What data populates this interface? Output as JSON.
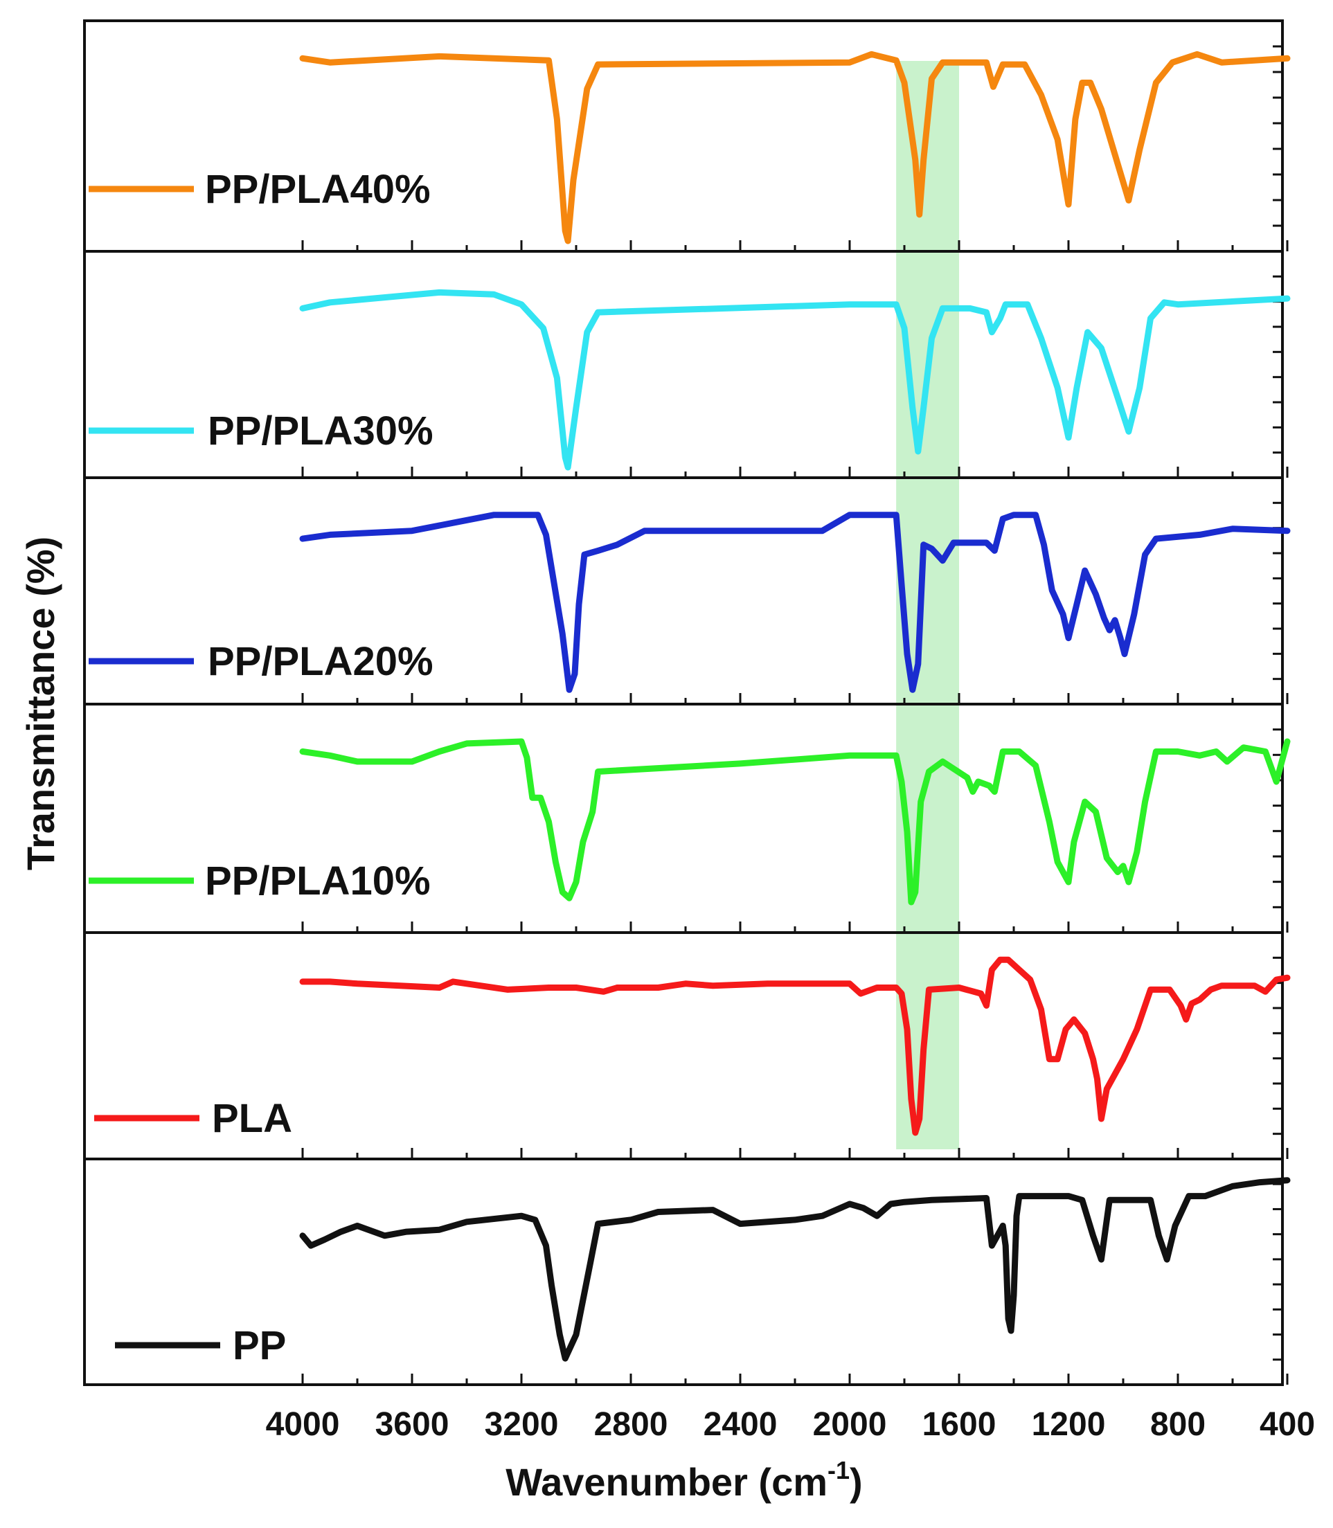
{
  "chart_data": {
    "type": "line",
    "title": "",
    "xlabel": "Wavenumber (cm",
    "xlabel_sup": "-1",
    "xlabel_close": ")",
    "ylabel": "Transmittance  (%)",
    "xlim": [
      4000,
      400
    ],
    "x_ticks": [
      "4000",
      "3600",
      "3200",
      "2800",
      "2400",
      "2000",
      "1600",
      "1200",
      "800",
      "400"
    ],
    "highlight_band": {
      "from": 1830,
      "to": 1600,
      "color": "#c9f2cc"
    },
    "series": [
      {
        "name": "PP/PLA40%",
        "color": "#f5870f",
        "points": [
          [
            4000,
            0.1
          ],
          [
            3900,
            0.12
          ],
          [
            3500,
            0.09
          ],
          [
            3100,
            0.11
          ],
          [
            3070,
            0.4
          ],
          [
            3040,
            0.95
          ],
          [
            3030,
            1.0
          ],
          [
            3010,
            0.7
          ],
          [
            2960,
            0.25
          ],
          [
            2920,
            0.13
          ],
          [
            2000,
            0.12
          ],
          [
            1920,
            0.08
          ],
          [
            1830,
            0.11
          ],
          [
            1800,
            0.22
          ],
          [
            1760,
            0.6
          ],
          [
            1745,
            0.87
          ],
          [
            1730,
            0.6
          ],
          [
            1700,
            0.2
          ],
          [
            1660,
            0.12
          ],
          [
            1560,
            0.12
          ],
          [
            1500,
            0.12
          ],
          [
            1475,
            0.24
          ],
          [
            1440,
            0.13
          ],
          [
            1360,
            0.13
          ],
          [
            1300,
            0.28
          ],
          [
            1240,
            0.5
          ],
          [
            1200,
            0.82
          ],
          [
            1175,
            0.4
          ],
          [
            1150,
            0.22
          ],
          [
            1120,
            0.22
          ],
          [
            1080,
            0.35
          ],
          [
            1020,
            0.62
          ],
          [
            980,
            0.8
          ],
          [
            940,
            0.55
          ],
          [
            880,
            0.22
          ],
          [
            820,
            0.12
          ],
          [
            730,
            0.08
          ],
          [
            640,
            0.12
          ],
          [
            400,
            0.1
          ]
        ]
      },
      {
        "name": "PP/PLA30%",
        "color": "#33e4f2",
        "points": [
          [
            4000,
            0.2
          ],
          [
            3900,
            0.17
          ],
          [
            3500,
            0.12
          ],
          [
            3300,
            0.13
          ],
          [
            3200,
            0.18
          ],
          [
            3120,
            0.3
          ],
          [
            3070,
            0.55
          ],
          [
            3040,
            0.95
          ],
          [
            3030,
            1.0
          ],
          [
            3000,
            0.7
          ],
          [
            2960,
            0.32
          ],
          [
            2920,
            0.22
          ],
          [
            2000,
            0.18
          ],
          [
            1830,
            0.18
          ],
          [
            1800,
            0.3
          ],
          [
            1770,
            0.7
          ],
          [
            1750,
            0.92
          ],
          [
            1730,
            0.7
          ],
          [
            1700,
            0.35
          ],
          [
            1660,
            0.2
          ],
          [
            1560,
            0.2
          ],
          [
            1500,
            0.22
          ],
          [
            1480,
            0.32
          ],
          [
            1450,
            0.25
          ],
          [
            1430,
            0.18
          ],
          [
            1350,
            0.18
          ],
          [
            1300,
            0.35
          ],
          [
            1240,
            0.6
          ],
          [
            1200,
            0.85
          ],
          [
            1170,
            0.6
          ],
          [
            1130,
            0.32
          ],
          [
            1080,
            0.4
          ],
          [
            1020,
            0.65
          ],
          [
            980,
            0.82
          ],
          [
            940,
            0.6
          ],
          [
            900,
            0.25
          ],
          [
            850,
            0.17
          ],
          [
            800,
            0.18
          ],
          [
            400,
            0.15
          ]
        ]
      },
      {
        "name": "PP/PLA20%",
        "color": "#1a2ccf",
        "points": [
          [
            4000,
            0.22
          ],
          [
            3900,
            0.2
          ],
          [
            3600,
            0.18
          ],
          [
            3450,
            0.14
          ],
          [
            3300,
            0.1
          ],
          [
            3140,
            0.1
          ],
          [
            3110,
            0.2
          ],
          [
            3080,
            0.45
          ],
          [
            3050,
            0.7
          ],
          [
            3025,
            0.98
          ],
          [
            3005,
            0.9
          ],
          [
            2990,
            0.55
          ],
          [
            2970,
            0.3
          ],
          [
            2920,
            0.28
          ],
          [
            2850,
            0.25
          ],
          [
            2750,
            0.18
          ],
          [
            2100,
            0.18
          ],
          [
            2000,
            0.1
          ],
          [
            1830,
            0.1
          ],
          [
            1810,
            0.45
          ],
          [
            1790,
            0.8
          ],
          [
            1770,
            0.98
          ],
          [
            1750,
            0.85
          ],
          [
            1730,
            0.25
          ],
          [
            1700,
            0.27
          ],
          [
            1660,
            0.33
          ],
          [
            1620,
            0.24
          ],
          [
            1560,
            0.24
          ],
          [
            1500,
            0.24
          ],
          [
            1470,
            0.28
          ],
          [
            1440,
            0.12
          ],
          [
            1400,
            0.1
          ],
          [
            1320,
            0.1
          ],
          [
            1290,
            0.25
          ],
          [
            1260,
            0.48
          ],
          [
            1220,
            0.6
          ],
          [
            1200,
            0.72
          ],
          [
            1170,
            0.55
          ],
          [
            1140,
            0.38
          ],
          [
            1100,
            0.5
          ],
          [
            1070,
            0.62
          ],
          [
            1050,
            0.68
          ],
          [
            1030,
            0.63
          ],
          [
            1010,
            0.72
          ],
          [
            995,
            0.8
          ],
          [
            960,
            0.6
          ],
          [
            920,
            0.3
          ],
          [
            880,
            0.22
          ],
          [
            720,
            0.2
          ],
          [
            600,
            0.17
          ],
          [
            400,
            0.18
          ]
        ]
      },
      {
        "name": "PP/PLA10%",
        "color": "#2cf028",
        "points": [
          [
            4000,
            0.15
          ],
          [
            3900,
            0.17
          ],
          [
            3800,
            0.2
          ],
          [
            3600,
            0.2
          ],
          [
            3500,
            0.15
          ],
          [
            3400,
            0.11
          ],
          [
            3200,
            0.1
          ],
          [
            3180,
            0.18
          ],
          [
            3160,
            0.38
          ],
          [
            3130,
            0.38
          ],
          [
            3100,
            0.5
          ],
          [
            3075,
            0.7
          ],
          [
            3050,
            0.85
          ],
          [
            3025,
            0.88
          ],
          [
            3000,
            0.8
          ],
          [
            2975,
            0.6
          ],
          [
            2940,
            0.45
          ],
          [
            2920,
            0.25
          ],
          [
            2400,
            0.21
          ],
          [
            2000,
            0.17
          ],
          [
            1830,
            0.17
          ],
          [
            1810,
            0.3
          ],
          [
            1790,
            0.55
          ],
          [
            1775,
            0.9
          ],
          [
            1760,
            0.85
          ],
          [
            1740,
            0.4
          ],
          [
            1710,
            0.25
          ],
          [
            1660,
            0.2
          ],
          [
            1570,
            0.28
          ],
          [
            1550,
            0.35
          ],
          [
            1530,
            0.3
          ],
          [
            1490,
            0.32
          ],
          [
            1470,
            0.35
          ],
          [
            1440,
            0.15
          ],
          [
            1380,
            0.15
          ],
          [
            1320,
            0.22
          ],
          [
            1270,
            0.5
          ],
          [
            1240,
            0.7
          ],
          [
            1200,
            0.8
          ],
          [
            1180,
            0.6
          ],
          [
            1140,
            0.4
          ],
          [
            1100,
            0.45
          ],
          [
            1060,
            0.68
          ],
          [
            1020,
            0.75
          ],
          [
            1000,
            0.72
          ],
          [
            980,
            0.8
          ],
          [
            950,
            0.65
          ],
          [
            920,
            0.4
          ],
          [
            880,
            0.15
          ],
          [
            800,
            0.15
          ],
          [
            720,
            0.17
          ],
          [
            660,
            0.15
          ],
          [
            620,
            0.2
          ],
          [
            560,
            0.13
          ],
          [
            480,
            0.15
          ],
          [
            440,
            0.3
          ],
          [
            420,
            0.2
          ],
          [
            400,
            0.1
          ]
        ]
      },
      {
        "name": "PLA",
        "color": "#f51a1a",
        "points": [
          [
            4000,
            0.16
          ],
          [
            3900,
            0.16
          ],
          [
            3800,
            0.17
          ],
          [
            3500,
            0.19
          ],
          [
            3450,
            0.16
          ],
          [
            3350,
            0.18
          ],
          [
            3250,
            0.2
          ],
          [
            3100,
            0.19
          ],
          [
            3000,
            0.19
          ],
          [
            2900,
            0.21
          ],
          [
            2850,
            0.19
          ],
          [
            2700,
            0.19
          ],
          [
            2600,
            0.17
          ],
          [
            2500,
            0.18
          ],
          [
            2300,
            0.17
          ],
          [
            2000,
            0.17
          ],
          [
            1960,
            0.22
          ],
          [
            1900,
            0.19
          ],
          [
            1830,
            0.19
          ],
          [
            1810,
            0.22
          ],
          [
            1790,
            0.4
          ],
          [
            1775,
            0.75
          ],
          [
            1760,
            0.92
          ],
          [
            1745,
            0.85
          ],
          [
            1730,
            0.5
          ],
          [
            1710,
            0.2
          ],
          [
            1600,
            0.19
          ],
          [
            1520,
            0.22
          ],
          [
            1500,
            0.28
          ],
          [
            1480,
            0.1
          ],
          [
            1450,
            0.05
          ],
          [
            1420,
            0.05
          ],
          [
            1380,
            0.1
          ],
          [
            1340,
            0.15
          ],
          [
            1300,
            0.3
          ],
          [
            1270,
            0.55
          ],
          [
            1240,
            0.55
          ],
          [
            1210,
            0.4
          ],
          [
            1180,
            0.35
          ],
          [
            1140,
            0.42
          ],
          [
            1110,
            0.55
          ],
          [
            1095,
            0.65
          ],
          [
            1080,
            0.85
          ],
          [
            1060,
            0.7
          ],
          [
            1000,
            0.55
          ],
          [
            950,
            0.4
          ],
          [
            900,
            0.2
          ],
          [
            830,
            0.2
          ],
          [
            790,
            0.28
          ],
          [
            770,
            0.35
          ],
          [
            750,
            0.27
          ],
          [
            720,
            0.25
          ],
          [
            680,
            0.2
          ],
          [
            640,
            0.18
          ],
          [
            520,
            0.18
          ],
          [
            480,
            0.21
          ],
          [
            440,
            0.15
          ],
          [
            400,
            0.14
          ]
        ]
      },
      {
        "name": "PP",
        "color": "#111111",
        "points": [
          [
            4000,
            0.3
          ],
          [
            3970,
            0.35
          ],
          [
            3920,
            0.32
          ],
          [
            3860,
            0.28
          ],
          [
            3800,
            0.25
          ],
          [
            3700,
            0.3
          ],
          [
            3620,
            0.28
          ],
          [
            3500,
            0.27
          ],
          [
            3400,
            0.23
          ],
          [
            3200,
            0.2
          ],
          [
            3150,
            0.22
          ],
          [
            3110,
            0.35
          ],
          [
            3090,
            0.55
          ],
          [
            3060,
            0.8
          ],
          [
            3040,
            0.92
          ],
          [
            3000,
            0.8
          ],
          [
            2950,
            0.45
          ],
          [
            2920,
            0.24
          ],
          [
            2800,
            0.22
          ],
          [
            2700,
            0.18
          ],
          [
            2500,
            0.17
          ],
          [
            2400,
            0.24
          ],
          [
            2200,
            0.22
          ],
          [
            2100,
            0.2
          ],
          [
            2000,
            0.14
          ],
          [
            1950,
            0.16
          ],
          [
            1900,
            0.2
          ],
          [
            1850,
            0.14
          ],
          [
            1800,
            0.13
          ],
          [
            1700,
            0.12
          ],
          [
            1500,
            0.11
          ],
          [
            1480,
            0.35
          ],
          [
            1460,
            0.3
          ],
          [
            1440,
            0.25
          ],
          [
            1430,
            0.35
          ],
          [
            1420,
            0.72
          ],
          [
            1410,
            0.78
          ],
          [
            1400,
            0.6
          ],
          [
            1390,
            0.2
          ],
          [
            1380,
            0.1
          ],
          [
            1200,
            0.1
          ],
          [
            1150,
            0.12
          ],
          [
            1110,
            0.3
          ],
          [
            1080,
            0.42
          ],
          [
            1050,
            0.12
          ],
          [
            900,
            0.12
          ],
          [
            870,
            0.3
          ],
          [
            840,
            0.42
          ],
          [
            810,
            0.25
          ],
          [
            760,
            0.1
          ],
          [
            700,
            0.1
          ],
          [
            600,
            0.05
          ],
          [
            500,
            0.03
          ],
          [
            400,
            0.02
          ]
        ]
      }
    ],
    "legend_placement": "left, inside each panel"
  }
}
